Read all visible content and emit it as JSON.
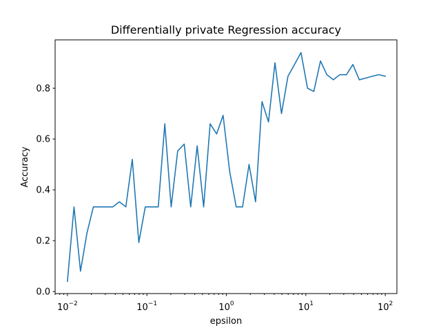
{
  "chart_data": {
    "type": "line",
    "title": "Differentially private Regression accuracy",
    "xlabel": "epsilon",
    "ylabel": "Accuracy",
    "xscale": "log",
    "xlim": [
      0.007,
      140
    ],
    "ylim": [
      -0.008,
      0.99
    ],
    "grid": false,
    "legend": "none",
    "x_ticks": [
      {
        "value": 0.01,
        "base": "10",
        "exp": "−2"
      },
      {
        "value": 0.1,
        "base": "10",
        "exp": "−1"
      },
      {
        "value": 1,
        "base": "10",
        "exp": "0"
      },
      {
        "value": 10,
        "base": "10",
        "exp": "1"
      },
      {
        "value": 100,
        "base": "10",
        "exp": "2"
      }
    ],
    "y_ticks": [
      "0.0",
      "0.2",
      "0.4",
      "0.6",
      "0.8"
    ],
    "y_tick_values": [
      0.0,
      0.2,
      0.4,
      0.6,
      0.8
    ],
    "series": [
      {
        "color": "#1f77b4",
        "x": [
          0.01,
          0.0121,
          0.0146,
          0.0176,
          0.0212,
          0.0256,
          0.0309,
          0.0373,
          0.045,
          0.0543,
          0.0655,
          0.0791,
          0.0954,
          0.115,
          0.139,
          0.168,
          0.202,
          0.244,
          0.295,
          0.356,
          0.429,
          0.518,
          0.625,
          0.754,
          0.91,
          1.1,
          1.33,
          1.6,
          1.93,
          2.33,
          2.81,
          3.39,
          4.09,
          4.94,
          5.96,
          7.2,
          8.69,
          10.5,
          12.6,
          15.3,
          18.4,
          22.2,
          26.8,
          32.4,
          39.1,
          47.1,
          56.9,
          68.7,
          82.9,
          100
        ],
        "y": [
          0.04,
          0.333,
          0.08,
          0.23,
          0.333,
          0.333,
          0.333,
          0.333,
          0.353,
          0.333,
          0.52,
          0.193,
          0.333,
          0.333,
          0.333,
          0.66,
          0.333,
          0.553,
          0.58,
          0.333,
          0.573,
          0.333,
          0.66,
          0.62,
          0.693,
          0.473,
          0.333,
          0.333,
          0.5,
          0.353,
          0.747,
          0.667,
          0.9,
          0.7,
          0.847,
          0.893,
          0.94,
          0.8,
          0.787,
          0.907,
          0.853,
          0.833,
          0.853,
          0.853,
          0.893,
          0.833,
          0.84,
          0.847,
          0.853,
          0.847
        ]
      }
    ]
  }
}
